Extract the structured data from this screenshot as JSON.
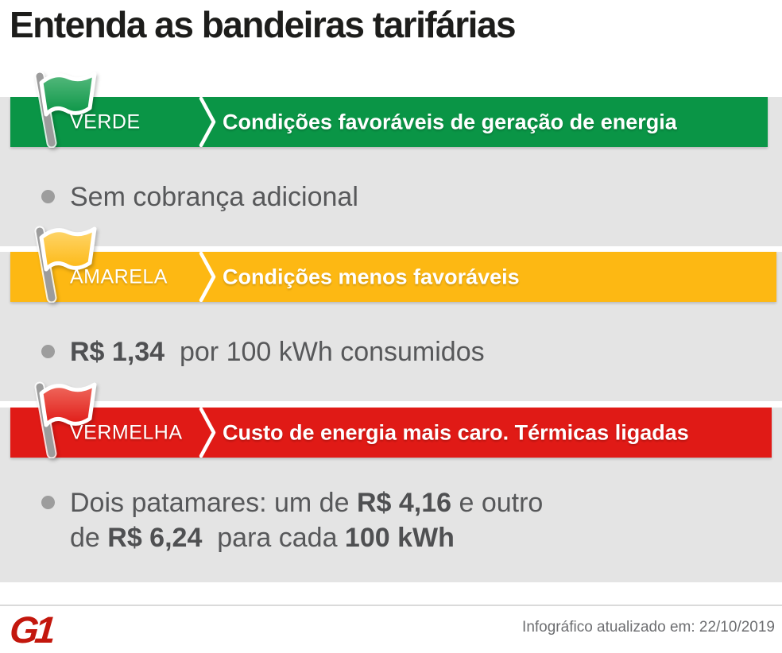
{
  "title": "Entenda as bandeiras tarifárias",
  "colors": {
    "background_panel": "#e4e4e4",
    "text_dark": "#57585a",
    "footer_note": "#6d6e71",
    "g1_red": "#c3170d"
  },
  "sections": [
    {
      "name": "verde",
      "label": "VERDE",
      "description": "Condições favoráveis de geração de energia",
      "banner_color": "#0a9546",
      "flag_color": "#0a9546",
      "flag_color_light": "#56b97d",
      "bullets": [
        {
          "segments": [
            {
              "text": "Sem cobrança adicional",
              "bold": false
            }
          ]
        }
      ]
    },
    {
      "name": "amarela",
      "label": "AMARELA",
      "description": "Condições menos favoráveis",
      "banner_color": "#fdb813",
      "flag_color": "#fdb813",
      "flag_color_light": "#fed66e",
      "bullets": [
        {
          "segments": [
            {
              "text": "R$ 1,34",
              "bold": true
            },
            {
              "text": "  por 100 kWh consumidos",
              "bold": false
            }
          ]
        }
      ]
    },
    {
      "name": "vermelha",
      "label": "VERMELHA",
      "description": "Custo de energia mais caro. Térmicas ligadas",
      "banner_color": "#e01a16",
      "flag_color": "#e01a16",
      "flag_color_light": "#ef6a5e",
      "bullets": [
        {
          "segments": [
            {
              "text": "Dois patamares: um de ",
              "bold": false
            },
            {
              "text": "R$ 4,16",
              "bold": true
            },
            {
              "text": " e outro",
              "bold": false
            },
            {
              "br": true
            },
            {
              "text": "de ",
              "bold": false
            },
            {
              "text": "R$ 6,24",
              "bold": true
            },
            {
              "text": "  para cada ",
              "bold": false
            },
            {
              "text": "100 kWh",
              "bold": true
            }
          ]
        }
      ]
    }
  ],
  "footer": {
    "logo_text": "G1",
    "updated_text": "Infográfico atualizado em: 22/10/2019"
  }
}
